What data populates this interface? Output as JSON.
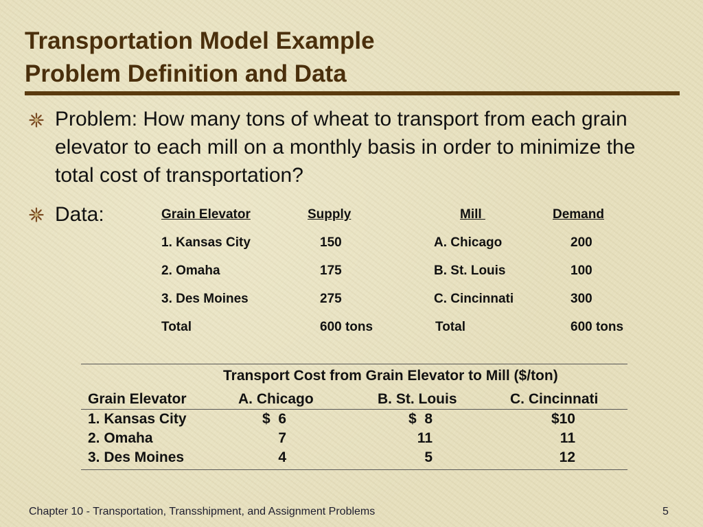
{
  "slide": {
    "title_line1": "Transportation Model Example",
    "title_line2": "Problem Definition and Data",
    "problem_text": "Problem:  How many tons of wheat to transport from each grain elevator to each mill on a monthly basis in order to minimize the total cost of transportation?",
    "data_label": "Data:",
    "bullet_icon": "star-burst-icon",
    "colors": {
      "title": "#4a2f0c",
      "rule": "#5a3a0e",
      "background": "#e6dfbd"
    }
  },
  "data_table": {
    "headers": {
      "grain_elevator": "Grain Elevator",
      "supply": "Supply",
      "mill": "Mill ",
      "demand": "Demand"
    },
    "rows": [
      {
        "elevator": "1. Kansas City",
        "supply": "150",
        "mill": "A. Chicago",
        "demand": "200"
      },
      {
        "elevator": "2. Omaha",
        "supply": "175",
        "mill": "B. St. Louis",
        "demand": "100"
      },
      {
        "elevator": "3. Des Moines",
        "supply": "275",
        "mill": "C. Cincinnati",
        "demand": "300"
      },
      {
        "elevator": "Total",
        "supply": "600 tons",
        "mill": "Total",
        "demand": "600 tons"
      }
    ]
  },
  "cost_table": {
    "title": "Transport Cost from Grain Elevator to Mill ($/ton)",
    "headers": [
      "Grain Elevator",
      "A. Chicago",
      "B. St. Louis",
      "C. Cincinnati"
    ],
    "rows": [
      {
        "elevator": "1. Kansas City",
        "chicago": "$  6",
        "st_louis": "$  8",
        "cincinnati": "$10"
      },
      {
        "elevator": "2. Omaha",
        "chicago": "7",
        "st_louis": "11",
        "cincinnati": "11"
      },
      {
        "elevator": "3. Des Moines",
        "chicago": "4",
        "st_louis": "5",
        "cincinnati": "12"
      }
    ]
  },
  "footer": {
    "chapter": "Chapter 10 - Transportation, Transshipment, and Assignment Problems",
    "page_number": "5"
  }
}
